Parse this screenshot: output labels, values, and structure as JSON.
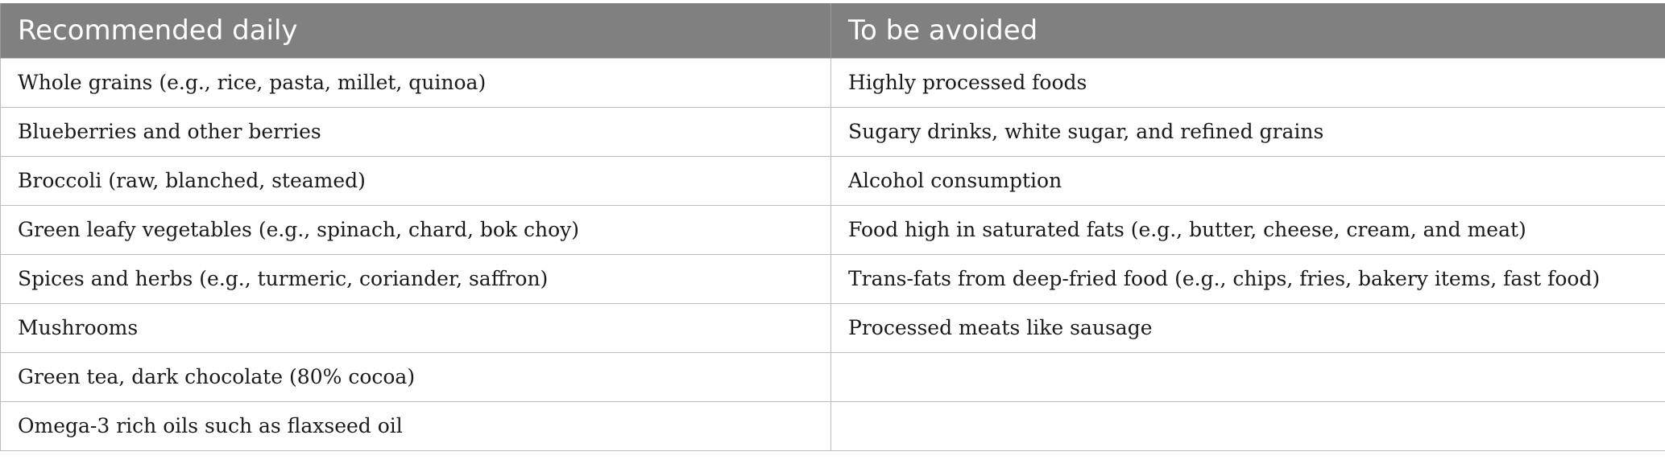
{
  "table": {
    "headers": [
      "Recommended daily",
      "To be avoided"
    ],
    "rows": [
      [
        "Whole grains (e.g., rice, pasta, millet, quinoa)",
        "Highly processed foods"
      ],
      [
        "Blueberries and other berries",
        "Sugary drinks, white sugar, and refined grains"
      ],
      [
        "Broccoli (raw, blanched, steamed)",
        "Alcohol consumption"
      ],
      [
        "Green leafy vegetables (e.g., spinach, chard, bok choy)",
        "Food high in saturated fats (e.g., butter, cheese, cream, and meat)"
      ],
      [
        "Spices and herbs (e.g., turmeric, coriander, saffron)",
        "Trans-fats from deep-fried food (e.g., chips, fries, bakery items, fast food)"
      ],
      [
        "Mushrooms",
        "Processed meats like sausage"
      ],
      [
        "Green tea, dark chocolate (80% cocoa)",
        ""
      ],
      [
        "Omega-3 rich oils such as flaxseed oil",
        ""
      ]
    ]
  }
}
